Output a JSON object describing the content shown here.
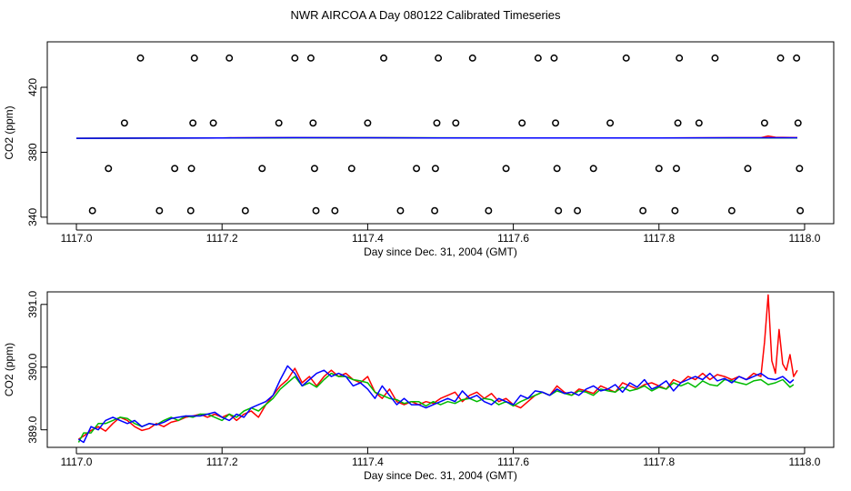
{
  "title": "NWR AIRCOA A  Day 080122  Calibrated Timeseries",
  "chart_data": [
    {
      "type": "scatter",
      "xlabel": "Day since Dec. 31, 2004 (GMT)",
      "ylabel": "CO2 (ppm)",
      "xlim": [
        1116.96,
        1118.04
      ],
      "ylim": [
        336,
        448
      ],
      "xticks": [
        "1117.0",
        "1117.2",
        "1117.4",
        "1117.6",
        "1117.8",
        "1118.0"
      ],
      "xtick_values": [
        1117.0,
        1117.2,
        1117.4,
        1117.6,
        1117.8,
        1118.0
      ],
      "yticks": [
        "340",
        "380",
        "420"
      ],
      "ytick_values": [
        340,
        380,
        420
      ],
      "grid": false,
      "points_color": "#000000",
      "points": [
        [
          1117.022,
          344
        ],
        [
          1117.044,
          370
        ],
        [
          1117.066,
          398
        ],
        [
          1117.088,
          438
        ],
        [
          1117.114,
          344
        ],
        [
          1117.135,
          370
        ],
        [
          1117.157,
          344
        ],
        [
          1117.158,
          370
        ],
        [
          1117.16,
          398
        ],
        [
          1117.162,
          438
        ],
        [
          1117.188,
          398
        ],
        [
          1117.21,
          438
        ],
        [
          1117.232,
          344
        ],
        [
          1117.255,
          370
        ],
        [
          1117.278,
          398
        ],
        [
          1117.3,
          438
        ],
        [
          1117.322,
          438
        ],
        [
          1117.325,
          398
        ],
        [
          1117.327,
          370
        ],
        [
          1117.329,
          344
        ],
        [
          1117.355,
          344
        ],
        [
          1117.378,
          370
        ],
        [
          1117.4,
          398
        ],
        [
          1117.422,
          438
        ],
        [
          1117.445,
          344
        ],
        [
          1117.467,
          370
        ],
        [
          1117.492,
          344
        ],
        [
          1117.493,
          370
        ],
        [
          1117.495,
          398
        ],
        [
          1117.497,
          438
        ],
        [
          1117.521,
          398
        ],
        [
          1117.544,
          438
        ],
        [
          1117.566,
          344
        ],
        [
          1117.59,
          370
        ],
        [
          1117.612,
          398
        ],
        [
          1117.634,
          438
        ],
        [
          1117.656,
          438
        ],
        [
          1117.658,
          398
        ],
        [
          1117.66,
          370
        ],
        [
          1117.662,
          344
        ],
        [
          1117.688,
          344
        ],
        [
          1117.71,
          370
        ],
        [
          1117.733,
          398
        ],
        [
          1117.755,
          438
        ],
        [
          1117.778,
          344
        ],
        [
          1117.8,
          370
        ],
        [
          1117.822,
          344
        ],
        [
          1117.824,
          370
        ],
        [
          1117.826,
          398
        ],
        [
          1117.828,
          438
        ],
        [
          1117.855,
          398
        ],
        [
          1117.877,
          438
        ],
        [
          1117.9,
          344
        ],
        [
          1117.922,
          370
        ],
        [
          1117.945,
          398
        ],
        [
          1117.967,
          438
        ],
        [
          1117.989,
          438
        ],
        [
          1117.991,
          398
        ],
        [
          1117.993,
          370
        ],
        [
          1117.994,
          344
        ]
      ],
      "series": [
        {
          "color": "#ff0000",
          "x": [
            1117.0,
            1117.1,
            1117.2,
            1117.3,
            1117.4,
            1117.5,
            1117.6,
            1117.7,
            1117.8,
            1117.9,
            1117.94,
            1117.95,
            1117.96,
            1117.99
          ],
          "values": [
            388.6,
            388.7,
            388.8,
            389.0,
            388.9,
            388.8,
            388.8,
            388.8,
            388.8,
            388.9,
            388.9,
            390.0,
            389.2,
            389.0
          ]
        },
        {
          "color": "#00bb00",
          "x": [
            1117.0,
            1117.2,
            1117.4,
            1117.6,
            1117.8,
            1117.99
          ],
          "values": [
            388.6,
            388.8,
            388.9,
            388.8,
            388.8,
            388.8
          ]
        },
        {
          "color": "#0000ff",
          "x": [
            1117.0,
            1117.1,
            1117.2,
            1117.3,
            1117.4,
            1117.5,
            1117.6,
            1117.7,
            1117.8,
            1117.9,
            1117.99
          ],
          "values": [
            388.6,
            388.7,
            388.8,
            389.0,
            388.9,
            388.8,
            388.8,
            388.8,
            388.8,
            388.9,
            388.9
          ]
        }
      ]
    },
    {
      "type": "line",
      "xlabel": "Day since Dec. 31, 2004 (GMT)",
      "ylabel": "CO2 (ppm)",
      "xlim": [
        1116.96,
        1118.04
      ],
      "ylim": [
        388.72,
        391.2
      ],
      "xticks": [
        "1117.0",
        "1117.2",
        "1117.4",
        "1117.6",
        "1117.8",
        "1118.0"
      ],
      "xtick_values": [
        1117.0,
        1117.2,
        1117.4,
        1117.6,
        1117.8,
        1118.0
      ],
      "yticks": [
        "389.0",
        "390.0",
        "391.0"
      ],
      "ytick_values": [
        389.0,
        390.0,
        391.0
      ],
      "grid": false,
      "series": [
        {
          "color": "#ff0000",
          "x": [
            1117.003,
            1117.01,
            1117.02,
            1117.03,
            1117.04,
            1117.05,
            1117.06,
            1117.07,
            1117.08,
            1117.09,
            1117.1,
            1117.11,
            1117.12,
            1117.13,
            1117.14,
            1117.15,
            1117.16,
            1117.17,
            1117.18,
            1117.19,
            1117.2,
            1117.21,
            1117.22,
            1117.23,
            1117.24,
            1117.25,
            1117.26,
            1117.27,
            1117.28,
            1117.29,
            1117.3,
            1117.31,
            1117.32,
            1117.33,
            1117.34,
            1117.35,
            1117.36,
            1117.37,
            1117.38,
            1117.39,
            1117.4,
            1117.41,
            1117.42,
            1117.43,
            1117.44,
            1117.45,
            1117.46,
            1117.47,
            1117.48,
            1117.49,
            1117.5,
            1117.51,
            1117.52,
            1117.53,
            1117.54,
            1117.55,
            1117.56,
            1117.57,
            1117.58,
            1117.59,
            1117.6,
            1117.61,
            1117.62,
            1117.63,
            1117.64,
            1117.65,
            1117.66,
            1117.67,
            1117.68,
            1117.69,
            1117.7,
            1117.71,
            1117.72,
            1117.73,
            1117.74,
            1117.75,
            1117.76,
            1117.77,
            1117.78,
            1117.79,
            1117.8,
            1117.81,
            1117.82,
            1117.83,
            1117.84,
            1117.85,
            1117.86,
            1117.87,
            1117.88,
            1117.89,
            1117.9,
            1117.91,
            1117.92,
            1117.93,
            1117.94,
            1117.945,
            1117.95,
            1117.955,
            1117.96,
            1117.965,
            1117.97,
            1117.975,
            1117.98,
            1117.985,
            1117.99
          ],
          "values": [
            388.85,
            388.9,
            388.99,
            389.05,
            388.98,
            389.1,
            389.2,
            389.15,
            389.05,
            388.99,
            389.02,
            389.1,
            389.05,
            389.12,
            389.15,
            389.2,
            389.22,
            389.25,
            389.2,
            389.25,
            389.2,
            389.25,
            389.15,
            389.25,
            389.3,
            389.2,
            389.4,
            389.55,
            389.7,
            389.8,
            389.98,
            389.75,
            389.85,
            389.7,
            389.85,
            389.95,
            389.85,
            389.9,
            389.8,
            389.75,
            389.85,
            389.6,
            389.5,
            389.65,
            389.45,
            389.4,
            389.45,
            389.4,
            389.45,
            389.42,
            389.5,
            389.55,
            389.6,
            389.45,
            389.55,
            389.6,
            389.5,
            389.58,
            389.45,
            389.5,
            389.4,
            389.35,
            389.45,
            389.55,
            389.6,
            389.55,
            389.7,
            389.6,
            389.55,
            389.65,
            389.62,
            389.58,
            389.7,
            389.65,
            389.6,
            389.75,
            389.7,
            389.65,
            389.72,
            389.75,
            389.7,
            389.65,
            389.8,
            389.75,
            389.85,
            389.8,
            389.9,
            389.8,
            389.88,
            389.85,
            389.8,
            389.85,
            389.8,
            389.9,
            389.85,
            390.4,
            391.15,
            390.1,
            389.9,
            390.6,
            390.05,
            389.95,
            390.2,
            389.85,
            389.95
          ]
        },
        {
          "color": "#00bb00",
          "x": [
            1117.003,
            1117.01,
            1117.02,
            1117.03,
            1117.04,
            1117.05,
            1117.06,
            1117.07,
            1117.08,
            1117.09,
            1117.1,
            1117.11,
            1117.12,
            1117.13,
            1117.14,
            1117.15,
            1117.16,
            1117.17,
            1117.18,
            1117.19,
            1117.2,
            1117.21,
            1117.22,
            1117.23,
            1117.24,
            1117.25,
            1117.26,
            1117.27,
            1117.28,
            1117.29,
            1117.3,
            1117.31,
            1117.32,
            1117.33,
            1117.34,
            1117.35,
            1117.36,
            1117.37,
            1117.38,
            1117.39,
            1117.4,
            1117.41,
            1117.42,
            1117.43,
            1117.44,
            1117.45,
            1117.46,
            1117.47,
            1117.48,
            1117.49,
            1117.5,
            1117.51,
            1117.52,
            1117.53,
            1117.54,
            1117.55,
            1117.56,
            1117.57,
            1117.58,
            1117.59,
            1117.6,
            1117.61,
            1117.62,
            1117.63,
            1117.64,
            1117.65,
            1117.66,
            1117.67,
            1117.68,
            1117.69,
            1117.7,
            1117.71,
            1117.72,
            1117.73,
            1117.74,
            1117.75,
            1117.76,
            1117.77,
            1117.78,
            1117.79,
            1117.8,
            1117.81,
            1117.82,
            1117.83,
            1117.84,
            1117.85,
            1117.86,
            1117.87,
            1117.88,
            1117.89,
            1117.9,
            1117.91,
            1117.92,
            1117.93,
            1117.94,
            1117.95,
            1117.96,
            1117.97,
            1117.98,
            1117.985
          ],
          "values": [
            388.8,
            388.95,
            388.95,
            389.1,
            389.1,
            389.15,
            389.2,
            389.18,
            389.1,
            389.05,
            389.1,
            389.08,
            389.15,
            389.2,
            389.15,
            389.22,
            389.2,
            389.25,
            389.25,
            389.2,
            389.15,
            389.25,
            389.2,
            389.3,
            389.35,
            389.3,
            389.4,
            389.5,
            389.65,
            389.75,
            389.85,
            389.7,
            389.75,
            389.68,
            389.8,
            389.9,
            389.85,
            389.85,
            389.8,
            389.78,
            389.75,
            389.6,
            389.55,
            389.5,
            389.48,
            389.42,
            389.45,
            389.45,
            389.38,
            389.45,
            389.4,
            389.45,
            389.42,
            389.48,
            389.5,
            389.45,
            389.5,
            389.48,
            389.4,
            389.45,
            389.38,
            389.45,
            389.5,
            389.55,
            389.6,
            389.55,
            389.62,
            389.58,
            389.55,
            389.62,
            389.6,
            389.55,
            389.65,
            389.62,
            389.6,
            389.68,
            389.62,
            389.65,
            389.7,
            389.62,
            389.68,
            389.65,
            389.75,
            389.7,
            389.75,
            389.68,
            389.78,
            389.72,
            389.7,
            389.8,
            389.78,
            389.75,
            389.72,
            389.78,
            389.8,
            389.72,
            389.75,
            389.8,
            389.68,
            389.72
          ]
        },
        {
          "color": "#0000ff",
          "x": [
            1117.003,
            1117.01,
            1117.02,
            1117.03,
            1117.04,
            1117.05,
            1117.06,
            1117.07,
            1117.08,
            1117.09,
            1117.1,
            1117.11,
            1117.12,
            1117.13,
            1117.14,
            1117.15,
            1117.16,
            1117.17,
            1117.18,
            1117.19,
            1117.2,
            1117.21,
            1117.22,
            1117.23,
            1117.24,
            1117.25,
            1117.26,
            1117.27,
            1117.28,
            1117.29,
            1117.3,
            1117.31,
            1117.32,
            1117.33,
            1117.34,
            1117.35,
            1117.36,
            1117.37,
            1117.38,
            1117.39,
            1117.4,
            1117.41,
            1117.42,
            1117.43,
            1117.44,
            1117.45,
            1117.46,
            1117.47,
            1117.48,
            1117.49,
            1117.5,
            1117.51,
            1117.52,
            1117.53,
            1117.54,
            1117.55,
            1117.56,
            1117.57,
            1117.58,
            1117.59,
            1117.6,
            1117.61,
            1117.62,
            1117.63,
            1117.64,
            1117.65,
            1117.66,
            1117.67,
            1117.68,
            1117.69,
            1117.7,
            1117.71,
            1117.72,
            1117.73,
            1117.74,
            1117.75,
            1117.76,
            1117.77,
            1117.78,
            1117.79,
            1117.8,
            1117.81,
            1117.82,
            1117.83,
            1117.84,
            1117.85,
            1117.86,
            1117.87,
            1117.88,
            1117.89,
            1117.9,
            1117.91,
            1117.92,
            1117.93,
            1117.94,
            1117.95,
            1117.96,
            1117.97,
            1117.98,
            1117.985
          ],
          "values": [
            388.85,
            388.8,
            389.05,
            389.0,
            389.15,
            389.2,
            389.15,
            389.1,
            389.15,
            389.05,
            389.1,
            389.08,
            389.12,
            389.18,
            389.2,
            389.22,
            389.22,
            389.22,
            389.25,
            389.28,
            389.2,
            389.15,
            389.25,
            389.2,
            389.35,
            389.4,
            389.45,
            389.55,
            389.8,
            390.02,
            389.9,
            389.7,
            389.8,
            389.9,
            389.95,
            389.85,
            389.9,
            389.85,
            389.7,
            389.75,
            389.65,
            389.5,
            389.7,
            389.55,
            389.4,
            389.5,
            389.4,
            389.4,
            389.35,
            389.4,
            389.45,
            389.5,
            389.45,
            389.62,
            389.5,
            389.55,
            389.45,
            389.4,
            389.5,
            389.45,
            389.4,
            389.55,
            389.5,
            389.62,
            389.6,
            389.55,
            389.65,
            389.58,
            389.6,
            389.55,
            389.65,
            389.7,
            389.62,
            389.65,
            389.72,
            389.6,
            389.75,
            389.68,
            389.8,
            389.65,
            389.7,
            389.78,
            389.62,
            389.75,
            389.8,
            389.85,
            389.8,
            389.9,
            389.78,
            389.82,
            389.75,
            389.85,
            389.8,
            389.85,
            389.9,
            389.82,
            389.8,
            389.85,
            389.75,
            389.8
          ]
        }
      ]
    }
  ]
}
